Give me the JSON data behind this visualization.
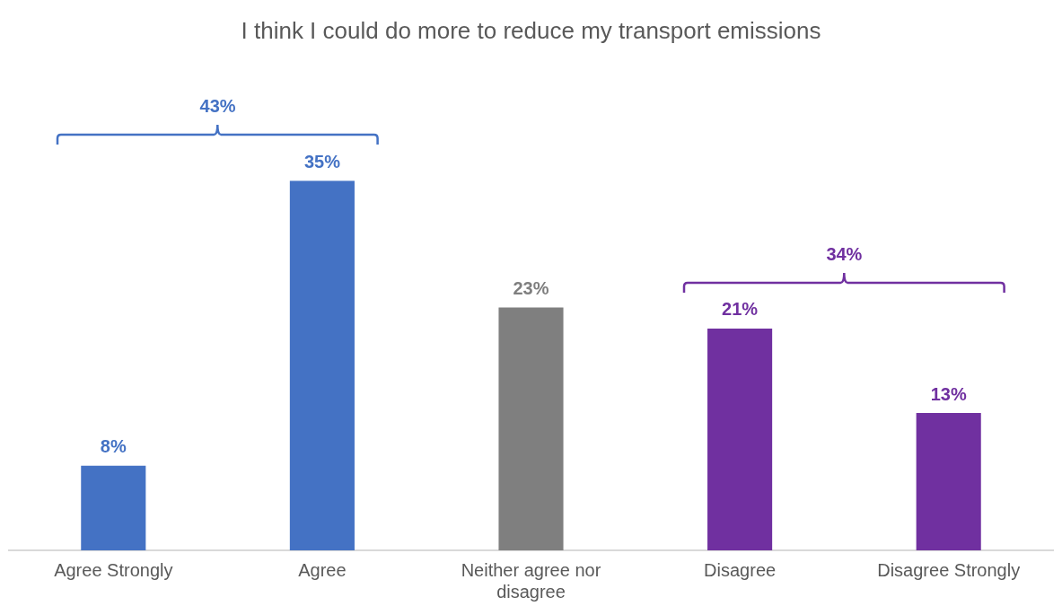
{
  "chart_data": {
    "type": "bar",
    "title": "I think I could do more to reduce my transport emissions",
    "categories": [
      "Agree Strongly",
      "Agree",
      "Neither agree nor disagree",
      "Disagree",
      "Disagree Strongly"
    ],
    "values": [
      8,
      35,
      23,
      21,
      13
    ],
    "colors": [
      "#4472c4",
      "#4472c4",
      "#7f7f7f",
      "#7030a0",
      "#7030a0"
    ],
    "value_labels": [
      "8%",
      "35%",
      "23%",
      "21%",
      "13%"
    ],
    "annotations": [
      "43%",
      "34%"
    ]
  }
}
